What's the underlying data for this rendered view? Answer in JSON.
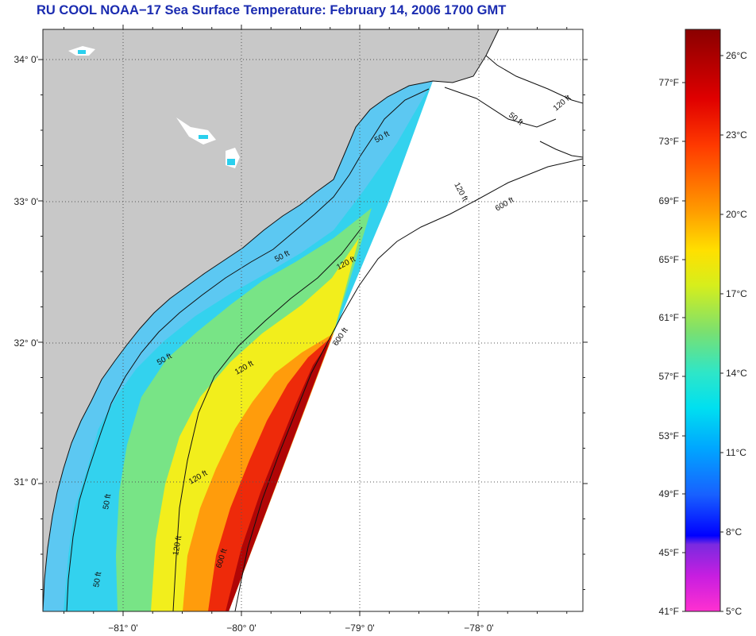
{
  "header": {
    "title": "RU COOL  NOAA−17  Sea Surface Temperature:  February 14, 2006 1700 GMT"
  },
  "map": {
    "latitude_labels": [
      "34° 0'",
      "33° 0'",
      "32° 0'",
      "31° 0'"
    ],
    "longitude_labels": [
      "−81° 0'",
      "−80° 0'",
      "−79° 0'",
      "−78° 0'"
    ],
    "contour_labels": [
      "50 ft",
      "120 ft",
      "600 ft"
    ],
    "colors": {
      "land": "#c8c8c8",
      "no_data": "#ffffff",
      "grid": "#555555",
      "title": "#1a2bb0"
    }
  },
  "colorbar": {
    "fahrenheit_labels": [
      "77°F",
      "73°F",
      "69°F",
      "65°F",
      "61°F",
      "57°F",
      "53°F",
      "49°F",
      "45°F",
      "41°F"
    ],
    "celsius_labels": [
      "26°C",
      "23°C",
      "20°C",
      "17°C",
      "14°C",
      "11°C",
      "8°C",
      "5°C"
    ]
  }
}
